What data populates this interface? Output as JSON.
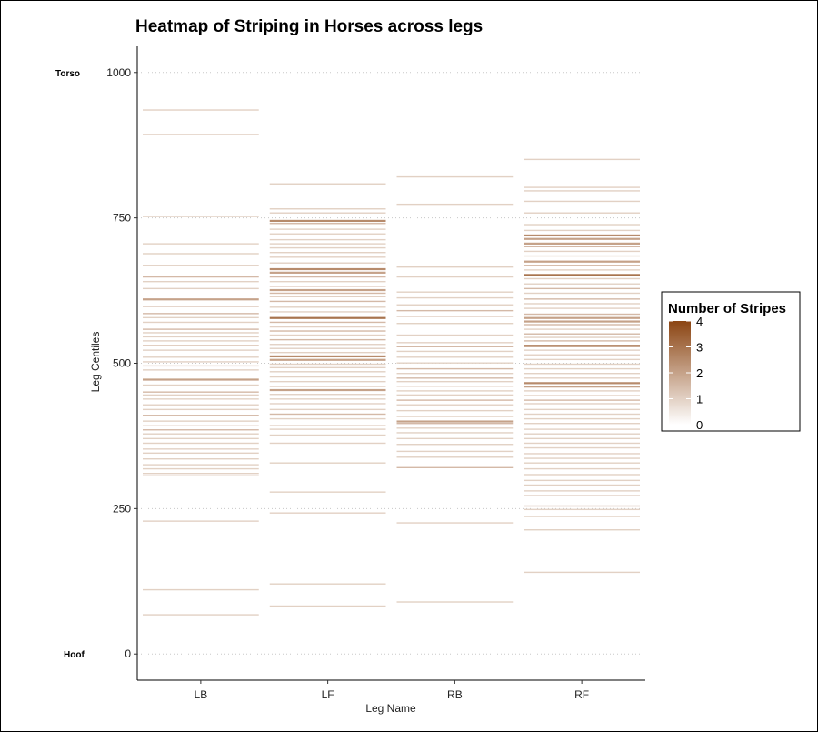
{
  "chart_data": {
    "type": "heatmap",
    "title": "Heatmap of Striping in Horses across legs",
    "xlabel": "Leg Name",
    "ylabel": "Leg Centiles",
    "categories": [
      "LB",
      "LF",
      "RB",
      "RF"
    ],
    "ylim": [
      -45,
      1045
    ],
    "yticks": [
      0,
      250,
      500,
      750,
      1000
    ],
    "annotations": [
      {
        "label": "Torso",
        "y": 1000
      },
      {
        "label": "Hoof",
        "y": 0
      }
    ],
    "gridlines": [
      0,
      250,
      500,
      750,
      1000
    ],
    "legend": {
      "title": "Number of Stripes",
      "min": 0,
      "max": 4,
      "ticks": [
        0,
        1,
        2,
        3,
        4
      ],
      "low_color": "#ffffff",
      "high_color": "#8b4513",
      "position": "right"
    },
    "series": [
      {
        "name": "LB",
        "stripes": [
          [
            935,
            1
          ],
          [
            893,
            1
          ],
          [
            752,
            1
          ],
          [
            705,
            1
          ],
          [
            688,
            1
          ],
          [
            668,
            1
          ],
          [
            648,
            1.5
          ],
          [
            640,
            1
          ],
          [
            628,
            1
          ],
          [
            610,
            2
          ],
          [
            597,
            1
          ],
          [
            585,
            1.5
          ],
          [
            578,
            1
          ],
          [
            570,
            1
          ],
          [
            558,
            1.5
          ],
          [
            552,
            1
          ],
          [
            545,
            1
          ],
          [
            538,
            1
          ],
          [
            530,
            1.5
          ],
          [
            522,
            1
          ],
          [
            510,
            1
          ],
          [
            502,
            1
          ],
          [
            495,
            1
          ],
          [
            488,
            1
          ],
          [
            472,
            2
          ],
          [
            462,
            1
          ],
          [
            450,
            1.5
          ],
          [
            445,
            1
          ],
          [
            438,
            1
          ],
          [
            428,
            1
          ],
          [
            420,
            1
          ],
          [
            410,
            1.5
          ],
          [
            400,
            1
          ],
          [
            392,
            1
          ],
          [
            385,
            1.5
          ],
          [
            378,
            1
          ],
          [
            370,
            1
          ],
          [
            362,
            1
          ],
          [
            352,
            1
          ],
          [
            345,
            1
          ],
          [
            335,
            1
          ],
          [
            325,
            1
          ],
          [
            318,
            1
          ],
          [
            310,
            1
          ],
          [
            306,
            1
          ],
          [
            228,
            1
          ],
          [
            110,
            1
          ],
          [
            67,
            1
          ]
        ]
      },
      {
        "name": "LF",
        "stripes": [
          [
            808,
            1
          ],
          [
            765,
            1
          ],
          [
            758,
            1
          ],
          [
            745,
            2.5
          ],
          [
            740,
            1.5
          ],
          [
            730,
            1
          ],
          [
            722,
            1
          ],
          [
            712,
            1
          ],
          [
            705,
            1
          ],
          [
            698,
            1
          ],
          [
            690,
            1
          ],
          [
            682,
            1
          ],
          [
            672,
            1
          ],
          [
            662,
            2.5
          ],
          [
            656,
            2
          ],
          [
            648,
            1.5
          ],
          [
            640,
            1
          ],
          [
            632,
            1.5
          ],
          [
            626,
            2
          ],
          [
            620,
            1.5
          ],
          [
            614,
            1
          ],
          [
            606,
            1.5
          ],
          [
            596,
            1
          ],
          [
            588,
            1
          ],
          [
            578,
            3
          ],
          [
            570,
            1.5
          ],
          [
            562,
            1
          ],
          [
            555,
            1.5
          ],
          [
            548,
            1
          ],
          [
            540,
            1.5
          ],
          [
            532,
            1
          ],
          [
            525,
            1
          ],
          [
            518,
            1
          ],
          [
            512,
            2.5
          ],
          [
            506,
            2
          ],
          [
            498,
            1
          ],
          [
            492,
            1
          ],
          [
            485,
            1
          ],
          [
            476,
            1
          ],
          [
            468,
            1
          ],
          [
            460,
            1.5
          ],
          [
            454,
            2
          ],
          [
            446,
            1
          ],
          [
            438,
            1
          ],
          [
            430,
            1
          ],
          [
            420,
            1
          ],
          [
            412,
            1.5
          ],
          [
            404,
            1
          ],
          [
            392,
            1.5
          ],
          [
            386,
            1
          ],
          [
            376,
            1
          ],
          [
            362,
            1
          ],
          [
            328,
            1
          ],
          [
            278,
            1
          ],
          [
            242,
            1
          ],
          [
            120,
            1
          ],
          [
            82,
            1
          ]
        ]
      },
      {
        "name": "RB",
        "stripes": [
          [
            820,
            1
          ],
          [
            773,
            1
          ],
          [
            665,
            1
          ],
          [
            648,
            1
          ],
          [
            622,
            1
          ],
          [
            612,
            1
          ],
          [
            600,
            1
          ],
          [
            590,
            1.5
          ],
          [
            580,
            1
          ],
          [
            568,
            1
          ],
          [
            548,
            1
          ],
          [
            535,
            1
          ],
          [
            528,
            1.5
          ],
          [
            520,
            1
          ],
          [
            510,
            1
          ],
          [
            500,
            1
          ],
          [
            490,
            1.5
          ],
          [
            482,
            1
          ],
          [
            474,
            1.5
          ],
          [
            468,
            1
          ],
          [
            460,
            1
          ],
          [
            452,
            1
          ],
          [
            445,
            1
          ],
          [
            436,
            1.5
          ],
          [
            428,
            1
          ],
          [
            418,
            1
          ],
          [
            408,
            1
          ],
          [
            400,
            2
          ],
          [
            396,
            1.5
          ],
          [
            388,
            1
          ],
          [
            380,
            1
          ],
          [
            370,
            1
          ],
          [
            360,
            1
          ],
          [
            348,
            1
          ],
          [
            338,
            1
          ],
          [
            320,
            1.5
          ],
          [
            225,
            1
          ],
          [
            89,
            1
          ]
        ]
      },
      {
        "name": "RF",
        "stripes": [
          [
            850,
            1
          ],
          [
            802,
            1
          ],
          [
            796,
            1
          ],
          [
            778,
            1
          ],
          [
            758,
            1
          ],
          [
            738,
            1
          ],
          [
            728,
            1
          ],
          [
            720,
            2.5
          ],
          [
            714,
            2
          ],
          [
            706,
            2
          ],
          [
            700,
            1.5
          ],
          [
            692,
            1
          ],
          [
            684,
            1
          ],
          [
            675,
            2
          ],
          [
            668,
            1.5
          ],
          [
            660,
            1
          ],
          [
            652,
            3
          ],
          [
            645,
            1
          ],
          [
            636,
            1
          ],
          [
            628,
            1.5
          ],
          [
            620,
            1
          ],
          [
            610,
            1.5
          ],
          [
            602,
            1
          ],
          [
            594,
            1
          ],
          [
            584,
            1.5
          ],
          [
            578,
            2
          ],
          [
            572,
            2
          ],
          [
            566,
            1.5
          ],
          [
            558,
            1
          ],
          [
            550,
            1.5
          ],
          [
            544,
            1
          ],
          [
            538,
            1.5
          ],
          [
            530,
            3.5
          ],
          [
            522,
            1
          ],
          [
            514,
            1
          ],
          [
            506,
            1
          ],
          [
            498,
            1
          ],
          [
            490,
            1
          ],
          [
            482,
            1
          ],
          [
            474,
            1
          ],
          [
            466,
            2.5
          ],
          [
            460,
            2
          ],
          [
            452,
            1
          ],
          [
            444,
            1
          ],
          [
            436,
            1.5
          ],
          [
            430,
            1
          ],
          [
            420,
            1
          ],
          [
            412,
            1
          ],
          [
            404,
            1
          ],
          [
            396,
            1
          ],
          [
            386,
            1
          ],
          [
            378,
            1
          ],
          [
            370,
            1
          ],
          [
            362,
            1
          ],
          [
            354,
            1
          ],
          [
            344,
            1
          ],
          [
            336,
            1
          ],
          [
            328,
            1
          ],
          [
            318,
            1
          ],
          [
            308,
            1
          ],
          [
            298,
            1
          ],
          [
            290,
            1
          ],
          [
            280,
            1
          ],
          [
            272,
            1
          ],
          [
            254,
            1.5
          ],
          [
            248,
            1
          ],
          [
            236,
            1
          ],
          [
            213,
            1
          ],
          [
            140,
            1
          ]
        ]
      }
    ]
  }
}
